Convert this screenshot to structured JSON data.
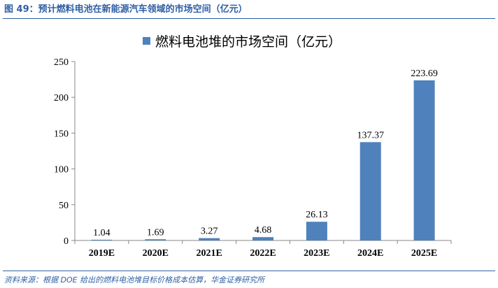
{
  "header": {
    "title": "图 49：预计燃料电池在新能源汽车领域的市场空间（亿元）"
  },
  "source": {
    "text": "资料来源：根据 DOE 给出的燃料电池堆目标价格成本估算，华金证券研究所"
  },
  "colors": {
    "accent": "#2f5fa5",
    "bar": "#4f81bd",
    "axis": "#888888"
  },
  "chart_data": {
    "type": "bar",
    "categories": [
      "2019E",
      "2020E",
      "2021E",
      "2022E",
      "2023E",
      "2024E",
      "2025E"
    ],
    "series": [
      {
        "name": "燃料电池堆的市场空间（亿元）",
        "values": [
          1.04,
          1.69,
          3.27,
          4.68,
          26.13,
          137.37,
          223.69
        ]
      }
    ],
    "data_labels": [
      "1.04",
      "1.69",
      "3.27",
      "4.68",
      "26.13",
      "137.37",
      "223.69"
    ],
    "ylim": [
      0,
      250
    ],
    "yticks": [
      0,
      50,
      100,
      150,
      200,
      250
    ],
    "grid": false,
    "legend_position": "top-center"
  }
}
